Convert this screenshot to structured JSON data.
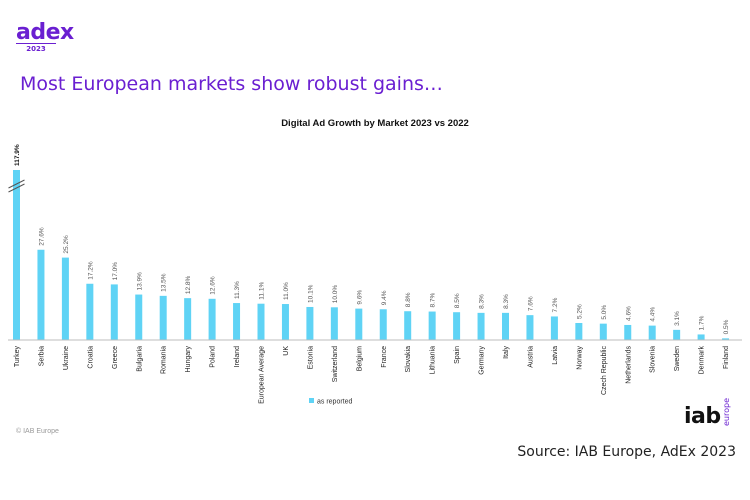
{
  "logo": {
    "word": "adex",
    "year": "2023"
  },
  "headline": "Most European markets show robust gains…",
  "brand_color": "#6a1fd1",
  "bar_color": "#5fd3f5",
  "chart_data": {
    "type": "bar",
    "title": "Digital Ad Growth by Market 2023 vs 2022",
    "categories": [
      "Turkey",
      "Serbia",
      "Ukraine",
      "Croatia",
      "Greece",
      "Bulgaria",
      "Romania",
      "Hungary",
      "Poland",
      "Ireland",
      "European Average",
      "UK",
      "Estonia",
      "Switzerland",
      "Belgium",
      "France",
      "Slovakia",
      "Lithuania",
      "Spain",
      "Germany",
      "Italy",
      "Austria",
      "Latvia",
      "Norway",
      "Czech Republic",
      "Netherlands",
      "Slovenia",
      "Sweden",
      "Denmark",
      "Finland"
    ],
    "series": [
      {
        "name": "as reported",
        "values": [
          117.9,
          27.6,
          25.2,
          17.2,
          17.0,
          13.9,
          13.5,
          12.8,
          12.6,
          11.3,
          11.1,
          11.0,
          10.1,
          10.0,
          9.6,
          9.4,
          8.8,
          8.7,
          8.5,
          8.3,
          8.3,
          7.6,
          7.2,
          5.2,
          5.0,
          4.6,
          4.4,
          3.1,
          1.7,
          0.5
        ],
        "labels": [
          "117.9%",
          "27.6%",
          "25.2%",
          "17.2%",
          "17.0%",
          "13.9%",
          "13.5%",
          "12.8%",
          "12.6%",
          "11.3%",
          "11.1%",
          "11.0%",
          "10.1%",
          "10.0%",
          "9.6%",
          "9.4%",
          "8.8%",
          "8.7%",
          "8.5%",
          "8.3%",
          "8.3%",
          "7.6%",
          "7.2%",
          "5.2%",
          "5.0%",
          "4.6%",
          "4.4%",
          "3.1%",
          "1.7%",
          "0.5%"
        ]
      }
    ],
    "axis_break": true,
    "grid": false,
    "legend": {
      "position": "bottom-center",
      "label": "as reported"
    }
  },
  "copyright": "© IAB Europe",
  "iab_logo": {
    "iab": "iab",
    "europe": "europe"
  },
  "source": "Source: IAB Europe, AdEx 2023"
}
